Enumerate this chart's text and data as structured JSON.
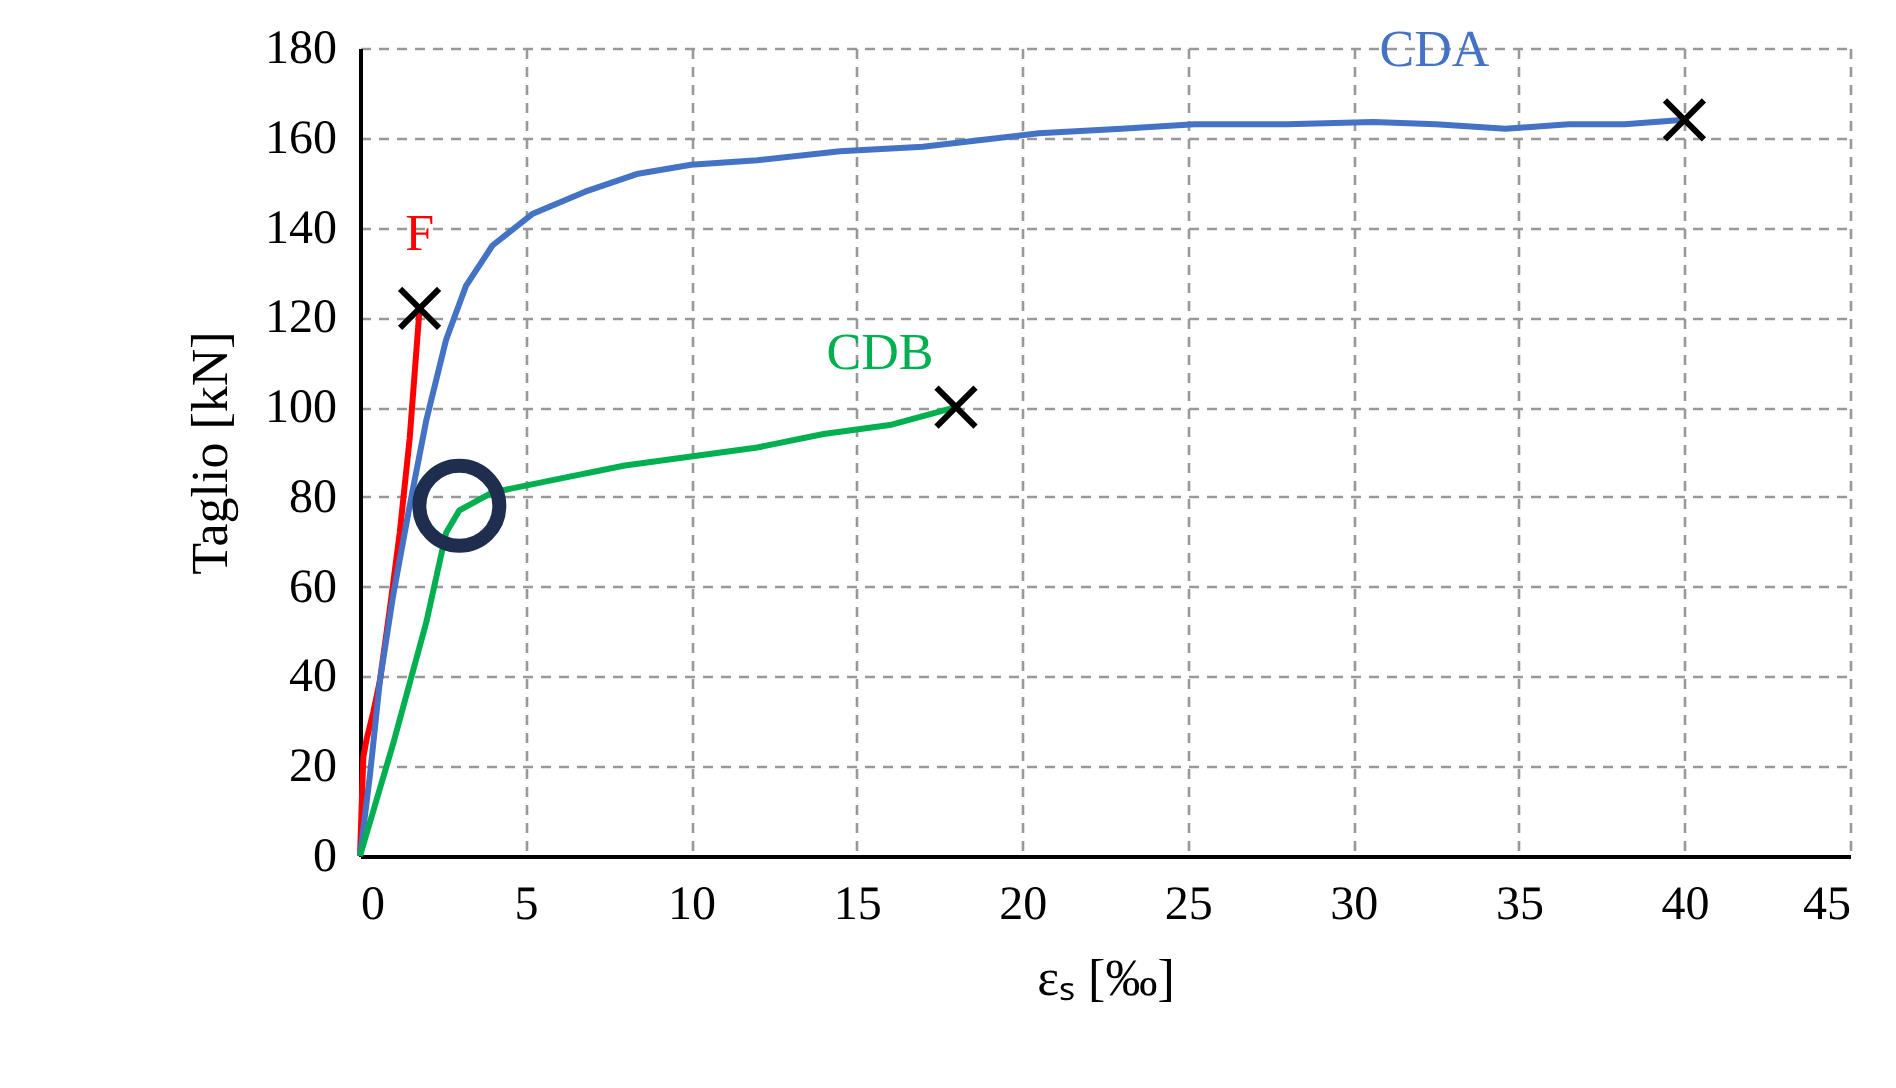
{
  "chart_data": {
    "type": "line",
    "xlabel": "εₛ [‰]",
    "ylabel": "Taglio [kN]",
    "xlim": [
      0,
      45
    ],
    "xticks": [
      0,
      5,
      10,
      15,
      20,
      25,
      30,
      35,
      40,
      45
    ],
    "ylim": [
      0,
      180
    ],
    "yticks": [
      0,
      20,
      40,
      60,
      80,
      100,
      120,
      140,
      160,
      180
    ],
    "grid": true,
    "line_style": "solid",
    "series": [
      {
        "name": "F",
        "color": "#ff0000",
        "x": [
          0,
          0.1,
          0.2,
          0.4,
          0.6,
          0.9,
          1.2,
          1.5,
          1.8
        ],
        "values": [
          0,
          22,
          26,
          32,
          39,
          55,
          72,
          93,
          122
        ]
      },
      {
        "name": "CDA",
        "color": "#4472c4",
        "x": [
          0,
          0.3,
          0.6,
          1.0,
          1.5,
          2.0,
          2.6,
          3.2,
          4.0,
          5.2,
          6.8,
          8.4,
          10,
          12,
          14.5,
          17,
          20.5,
          23,
          25.2,
          28,
          30.6,
          32.5,
          34.6,
          36.5,
          38.2,
          40
        ],
        "values": [
          0,
          18,
          39,
          58,
          78,
          97,
          115,
          127,
          136,
          143,
          148,
          152,
          154,
          155,
          157,
          158,
          161,
          162,
          163,
          163,
          163.5,
          163,
          162,
          163,
          163,
          164
        ]
      },
      {
        "name": "CDB",
        "color": "#00b050",
        "x": [
          0,
          1,
          2,
          2.6,
          3,
          4,
          6,
          8,
          10,
          12,
          14,
          16,
          17,
          18
        ],
        "values": [
          0,
          25,
          52,
          72,
          77,
          81,
          84,
          87,
          89,
          91,
          94,
          96,
          98,
          100
        ]
      },
      {
        "type": "scatter",
        "marker": "cross",
        "color": "#000000",
        "x": [
          1.8,
          18,
          40
        ],
        "values": [
          122,
          100,
          164
        ]
      },
      {
        "type": "scatter",
        "marker": "circle",
        "color": "#1f2d4f",
        "x": [
          3
        ],
        "values": [
          78
        ]
      }
    ]
  }
}
